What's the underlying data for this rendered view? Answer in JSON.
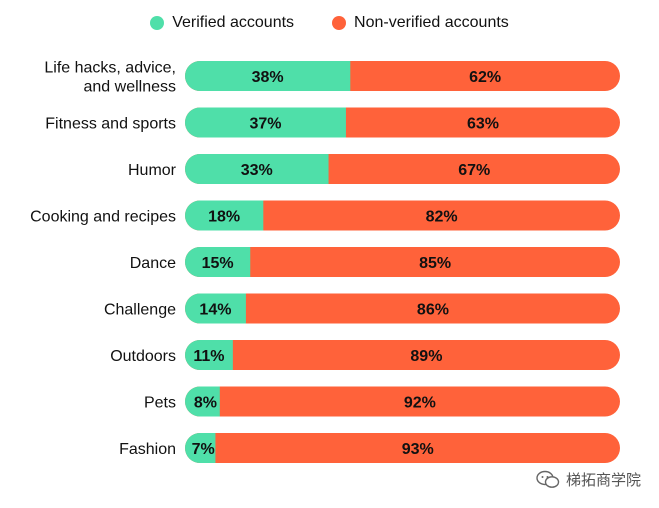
{
  "legend": {
    "verified_label": "Verified accounts",
    "nonverified_label": "Non-verified accounts"
  },
  "colors": {
    "verified": "#4fdfa9",
    "nonverified": "#ff623a"
  },
  "watermark": {
    "text": "梯拓商学院",
    "icon": "wechat-icon"
  },
  "chart_data": {
    "type": "bar",
    "orientation": "horizontal",
    "stacked": true,
    "percent": true,
    "categories": [
      "Life hacks, advice,\nand wellness",
      "Fitness and sports",
      "Humor",
      "Cooking and recipes",
      "Dance",
      "Challenge",
      "Outdoors",
      "Pets",
      "Fashion"
    ],
    "series": [
      {
        "name": "Verified accounts",
        "values": [
          38,
          37,
          33,
          18,
          15,
          14,
          11,
          8,
          7
        ]
      },
      {
        "name": "Non-verified accounts",
        "values": [
          62,
          63,
          67,
          82,
          85,
          86,
          89,
          92,
          93
        ]
      }
    ],
    "xlim": [
      0,
      100
    ],
    "legend_position": "top",
    "grid": false
  }
}
